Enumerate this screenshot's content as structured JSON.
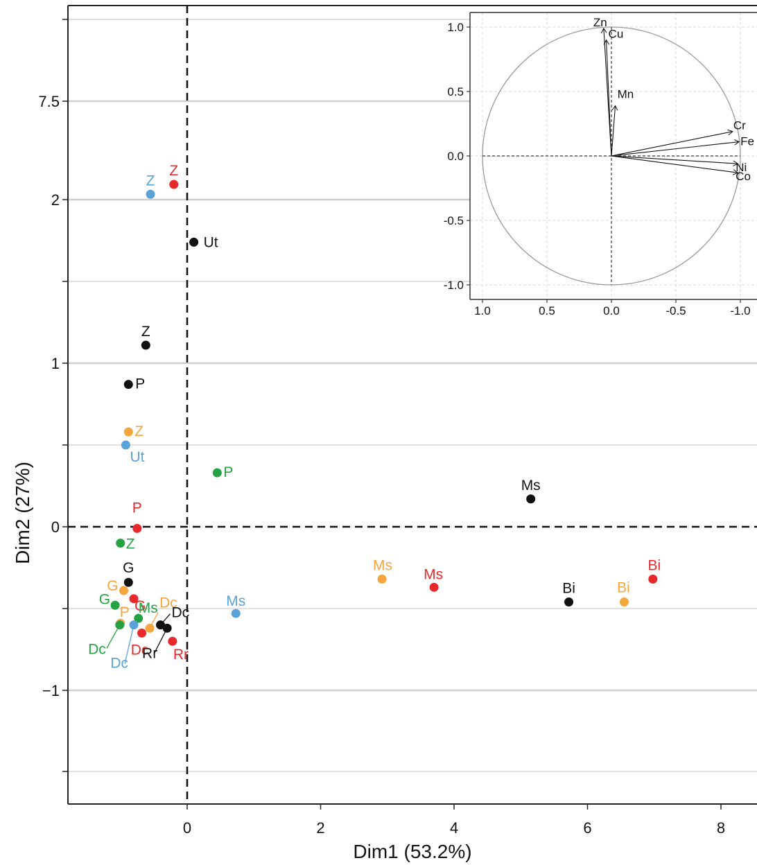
{
  "chart_data": [
    {
      "type": "scatter",
      "title": "",
      "xlabel": "Dim1 (53.2%)",
      "ylabel": "Dim2 (27%)",
      "xticks": [
        "0",
        "2",
        "4",
        "6",
        "8"
      ],
      "yticks": [
        "7.5",
        "2",
        "1",
        "0",
        "−1"
      ],
      "grid": "horizontal lines",
      "colors": {
        "black": "#111111",
        "red": "#e8292b",
        "blue": "#5aa3d8",
        "orange": "#f5a53d",
        "green": "#25a244"
      },
      "points": [
        {
          "label": "Z",
          "x": -0.2,
          "y": 2.85,
          "color": "red"
        },
        {
          "label": "Z",
          "x": -0.55,
          "y": 2.3,
          "color": "blue"
        },
        {
          "label": "Ut",
          "x": 0.1,
          "y": 1.74,
          "color": "black"
        },
        {
          "label": "Z",
          "x": -0.62,
          "y": 1.11,
          "color": "black"
        },
        {
          "label": "P",
          "x": -0.88,
          "y": 0.87,
          "color": "black"
        },
        {
          "label": "Z",
          "x": -0.88,
          "y": 0.58,
          "color": "orange"
        },
        {
          "label": "Ut",
          "x": -0.92,
          "y": 0.5,
          "color": "blue"
        },
        {
          "label": "P",
          "x": 0.45,
          "y": 0.33,
          "color": "green"
        },
        {
          "label": "Ms",
          "x": 5.15,
          "y": 0.17,
          "color": "black"
        },
        {
          "label": "P",
          "x": -0.75,
          "y": -0.01,
          "color": "red"
        },
        {
          "label": "Z",
          "x": -1.0,
          "y": -0.1,
          "color": "green"
        },
        {
          "label": "G",
          "x": -0.88,
          "y": -0.34,
          "color": "black"
        },
        {
          "label": "G",
          "x": -0.95,
          "y": -0.39,
          "color": "orange"
        },
        {
          "label": "G",
          "x": -0.8,
          "y": -0.44,
          "color": "red"
        },
        {
          "label": "G",
          "x": -1.08,
          "y": -0.48,
          "color": "green"
        },
        {
          "label": "P",
          "x": -1.0,
          "y": -0.59,
          "color": "orange"
        },
        {
          "label": "Ms",
          "x": -0.73,
          "y": -0.56,
          "color": "green"
        },
        {
          "label": "Dc",
          "x": -1.01,
          "y": -0.6,
          "color": "green"
        },
        {
          "label": "Dc",
          "x": -0.8,
          "y": -0.6,
          "color": "blue"
        },
        {
          "label": "Dc",
          "x": -0.56,
          "y": -0.62,
          "color": "orange"
        },
        {
          "label": "Dc",
          "x": -0.68,
          "y": -0.65,
          "color": "red"
        },
        {
          "label": "Dc",
          "x": -0.4,
          "y": -0.6,
          "color": "black"
        },
        {
          "label": "Rr",
          "x": -0.3,
          "y": -0.62,
          "color": "black"
        },
        {
          "label": "Rr",
          "x": -0.22,
          "y": -0.7,
          "color": "red"
        },
        {
          "label": "Ms",
          "x": 0.73,
          "y": -0.53,
          "color": "blue"
        },
        {
          "label": "Ms",
          "x": 2.92,
          "y": -0.32,
          "color": "orange"
        },
        {
          "label": "Ms",
          "x": 3.7,
          "y": -0.37,
          "color": "red"
        },
        {
          "label": "Bi",
          "x": 5.72,
          "y": -0.46,
          "color": "black"
        },
        {
          "label": "Bi",
          "x": 6.55,
          "y": -0.46,
          "color": "orange"
        },
        {
          "label": "Bi",
          "x": 6.98,
          "y": -0.32,
          "color": "red"
        }
      ]
    },
    {
      "type": "scatter",
      "subtype": "correlation-circle",
      "title": "",
      "xticks": [
        "1.0",
        "0.5",
        "0.0",
        "-0.5",
        "-1.0"
      ],
      "yticks": [
        "1.0",
        "0.5",
        "0.0",
        "-0.5",
        "-1.0"
      ],
      "xlim": [
        1.0,
        -1.0
      ],
      "ylim": [
        -1.0,
        1.0
      ],
      "grid": "dashed",
      "vectors": [
        {
          "label": "Zn",
          "x": 0.06,
          "y": 0.99
        },
        {
          "label": "Cu",
          "x": 0.04,
          "y": 0.9
        },
        {
          "label": "Mn",
          "x": -0.03,
          "y": 0.39
        },
        {
          "label": "Cr",
          "x": -0.94,
          "y": 0.19
        },
        {
          "label": "Fe",
          "x": -0.99,
          "y": 0.11
        },
        {
          "label": "Ni",
          "x": -0.98,
          "y": -0.06
        },
        {
          "label": "Co",
          "x": -0.98,
          "y": -0.13
        }
      ]
    }
  ]
}
